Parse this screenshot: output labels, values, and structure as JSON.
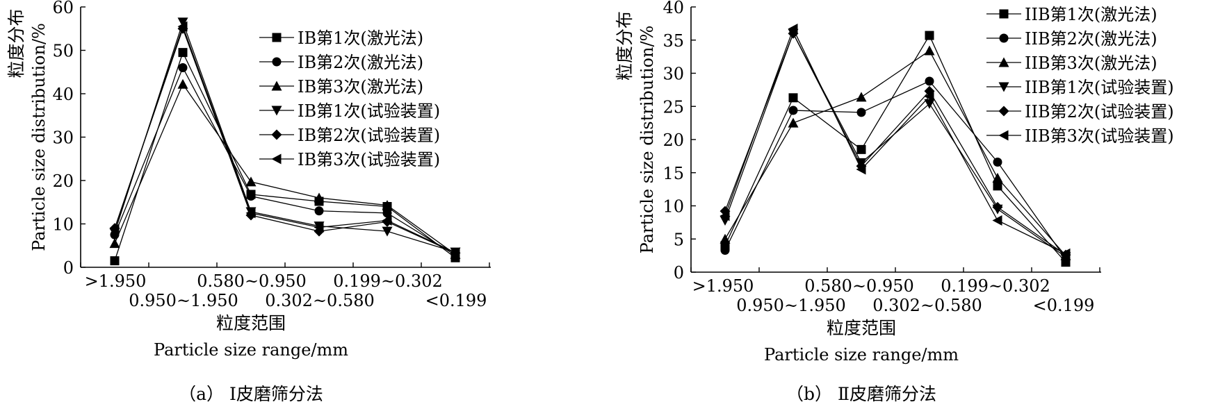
{
  "chart_data": [
    {
      "type": "line",
      "caption": "（a） Ⅰ皮磨筛分法",
      "ylabel_cn": "粒度分布",
      "ylabel_en": "Particle size distribution/%",
      "xlabel_cn": "粒度范围",
      "xlabel_en": "Particle size range/mm",
      "categories": [
        ">1.950",
        "0.950~1.950",
        "0.580~0.950",
        "0.302~0.580",
        "0.199~0.302",
        "<0.199"
      ],
      "ylim": [
        0,
        60
      ],
      "yticks": [
        0,
        10,
        20,
        30,
        40,
        50,
        60
      ],
      "legend_position": "top-right",
      "series": [
        {
          "name": "IB第1次(激光法)",
          "marker": "square",
          "values": [
            1.5,
            49.5,
            16.8,
            15.2,
            14.0,
            2.2
          ]
        },
        {
          "name": "IB第2次(激光法)",
          "marker": "circle",
          "values": [
            7.5,
            46.0,
            16.4,
            13.0,
            12.5,
            2.8
          ]
        },
        {
          "name": "IB第3次(激光法)",
          "marker": "triangle-up",
          "values": [
            5.5,
            42.2,
            19.7,
            16.0,
            14.3,
            3.0
          ]
        },
        {
          "name": "IB第1次(试验装置)",
          "marker": "triangle-down",
          "values": [
            8.0,
            56.5,
            12.8,
            9.5,
            8.3,
            3.5
          ]
        },
        {
          "name": "IB第2次(试验装置)",
          "marker": "diamond",
          "values": [
            9.0,
            55.0,
            12.0,
            8.3,
            10.5,
            3.3
          ]
        },
        {
          "name": "IB第3次(试验装置)",
          "marker": "triangle-left",
          "values": [
            8.8,
            55.5,
            12.5,
            9.2,
            10.8,
            3.4
          ]
        }
      ]
    },
    {
      "type": "line",
      "caption": "（b） Ⅱ皮磨筛分法",
      "ylabel_cn": "粒度分布",
      "ylabel_en": "Particle size distribution/%",
      "xlabel_cn": "粒度范围",
      "xlabel_en": "Particle size range/mm",
      "categories": [
        ">1.950",
        "0.950~1.950",
        "0.580~0.950",
        "0.302~0.580",
        "0.199~0.302",
        "<0.199"
      ],
      "ylim": [
        0,
        40
      ],
      "yticks": [
        0,
        5,
        10,
        15,
        20,
        25,
        30,
        35,
        40
      ],
      "legend_position": "top-right",
      "series": [
        {
          "name": "IIB第1次(激光法)",
          "marker": "square",
          "values": [
            4.0,
            26.3,
            18.5,
            35.7,
            13.0,
            1.5
          ]
        },
        {
          "name": "IIB第2次(激光法)",
          "marker": "circle",
          "values": [
            3.3,
            24.4,
            24.1,
            28.8,
            16.6,
            2.0
          ]
        },
        {
          "name": "IIB第3次(激光法)",
          "marker": "triangle-up",
          "values": [
            5.0,
            22.5,
            26.4,
            33.4,
            14.2,
            2.5
          ]
        },
        {
          "name": "IIB第1次(试验装置)",
          "marker": "triangle-down",
          "values": [
            7.8,
            36.0,
            16.5,
            25.4,
            9.5,
            2.3
          ]
        },
        {
          "name": "IIB第2次(试验装置)",
          "marker": "diamond",
          "values": [
            9.2,
            36.0,
            16.0,
            27.3,
            9.8,
            2.6
          ]
        },
        {
          "name": "IIB第3次(试验装置)",
          "marker": "triangle-left",
          "values": [
            8.5,
            36.7,
            15.5,
            26.5,
            7.8,
            2.8
          ]
        }
      ]
    }
  ]
}
